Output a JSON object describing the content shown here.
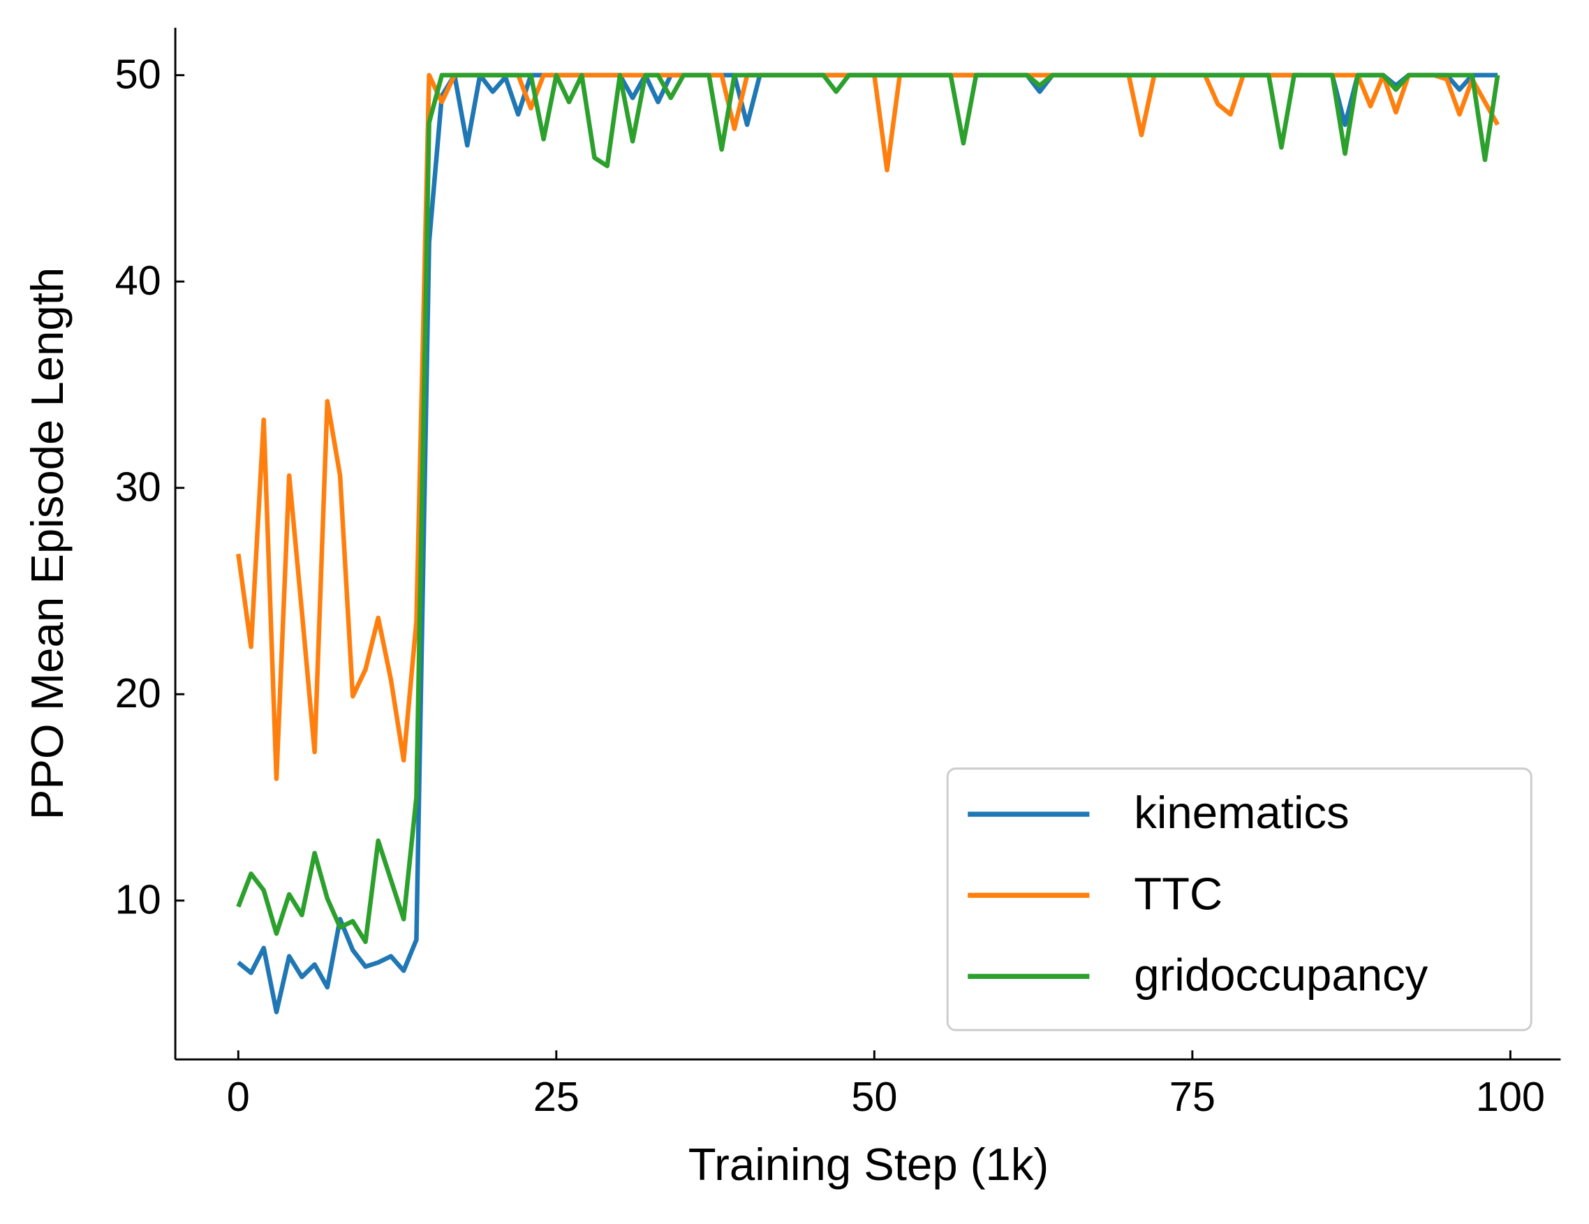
{
  "chart_data": {
    "type": "line",
    "xlabel": "Training Step (1k)",
    "ylabel": "PPO Mean Episode Length",
    "x": [
      0,
      1,
      2,
      3,
      4,
      5,
      6,
      7,
      8,
      9,
      10,
      11,
      12,
      13,
      14,
      15,
      16,
      17,
      18,
      19,
      20,
      21,
      22,
      23,
      24,
      25,
      26,
      27,
      28,
      29,
      30,
      31,
      32,
      33,
      34,
      35,
      36,
      37,
      38,
      39,
      40,
      41,
      42,
      43,
      44,
      45,
      46,
      47,
      48,
      49,
      50,
      51,
      52,
      53,
      54,
      55,
      56,
      57,
      58,
      59,
      60,
      61,
      62,
      63,
      64,
      65,
      66,
      67,
      68,
      69,
      70,
      71,
      72,
      73,
      74,
      75,
      76,
      77,
      78,
      79,
      80,
      81,
      82,
      83,
      84,
      85,
      86,
      87,
      88,
      89,
      90,
      91,
      92,
      93,
      94,
      95,
      96,
      97,
      98,
      99
    ],
    "series": [
      {
        "name": "kinematics",
        "color": "#1f77b4",
        "values": [
          7.0,
          6.5,
          7.7,
          4.6,
          7.3,
          6.3,
          6.9,
          5.8,
          9.1,
          7.6,
          6.8,
          7.0,
          7.3,
          6.6,
          8.1,
          41.9,
          49.0,
          50,
          46.6,
          50,
          49.2,
          49.9,
          48.1,
          50,
          50,
          50,
          50,
          50,
          50,
          50,
          50,
          48.9,
          50,
          48.7,
          50,
          50,
          50,
          50,
          50,
          50,
          47.6,
          50,
          50,
          50,
          50,
          50,
          50,
          50,
          50,
          50,
          50,
          50,
          50,
          50,
          50,
          50,
          50,
          50,
          50,
          50,
          50,
          50,
          50,
          49.2,
          50,
          50,
          50,
          50,
          50,
          50,
          50,
          50,
          50,
          50,
          50,
          50,
          50,
          50,
          50,
          50,
          50,
          50,
          50,
          50,
          50,
          50,
          50,
          47.6,
          50,
          50,
          50,
          49.5,
          50,
          50,
          50,
          50,
          49.3,
          50,
          50,
          50
        ]
      },
      {
        "name": "TTC",
        "color": "#ff7f0e",
        "values": [
          26.8,
          22.3,
          33.3,
          15.9,
          30.6,
          24.0,
          17.2,
          34.2,
          30.6,
          19.9,
          21.2,
          23.7,
          20.7,
          16.8,
          23.5,
          50,
          48.7,
          50,
          50,
          50,
          50,
          50,
          50,
          48.4,
          50,
          50,
          50,
          50,
          50,
          50,
          50,
          50,
          50,
          50,
          50,
          50,
          50,
          50,
          50,
          47.4,
          50,
          50,
          50,
          50,
          50,
          50,
          50,
          50,
          50,
          50,
          50,
          45.4,
          50,
          50,
          50,
          50,
          50,
          50,
          50,
          50,
          50,
          50,
          50,
          50,
          50,
          50,
          50,
          50,
          50,
          50,
          50,
          47.1,
          50,
          50,
          50,
          50,
          50,
          48.6,
          48.1,
          50,
          50,
          50,
          50,
          50,
          50,
          50,
          50,
          50,
          50,
          48.5,
          50,
          48.2,
          50,
          50,
          50,
          49.8,
          48.1,
          49.8,
          48.7,
          47.6
        ]
      },
      {
        "name": "gridoccupancy",
        "color": "#2ca02c",
        "values": [
          9.7,
          11.3,
          10.5,
          8.4,
          10.3,
          9.3,
          12.3,
          10.1,
          8.7,
          9.0,
          8.0,
          12.9,
          11.0,
          9.1,
          15.0,
          47.7,
          50,
          50,
          50,
          50,
          50,
          50,
          50,
          50,
          46.9,
          50,
          48.7,
          50,
          46.0,
          45.6,
          50,
          46.8,
          50,
          50,
          48.9,
          50,
          50,
          50,
          46.4,
          50,
          50,
          50,
          50,
          50,
          50,
          50,
          50,
          49.2,
          50,
          50,
          50,
          50,
          50,
          50,
          50,
          50,
          50,
          46.7,
          50,
          50,
          50,
          50,
          50,
          49.5,
          50,
          50,
          50,
          50,
          50,
          50,
          50,
          50,
          50,
          50,
          50,
          50,
          50,
          50,
          50,
          50,
          50,
          50,
          46.5,
          50,
          50,
          50,
          50,
          46.2,
          50,
          50,
          50,
          49.3,
          50,
          50,
          50,
          50,
          50,
          50,
          45.9,
          50
        ]
      }
    ],
    "xlim": [
      -4.95,
      103.95
    ],
    "ylim": [
      2.3,
      52.3
    ],
    "xticks": [
      0,
      25,
      50,
      75,
      100
    ],
    "yticks": [
      10,
      20,
      30,
      40,
      50
    ],
    "grid": false,
    "legend": "lower right"
  }
}
